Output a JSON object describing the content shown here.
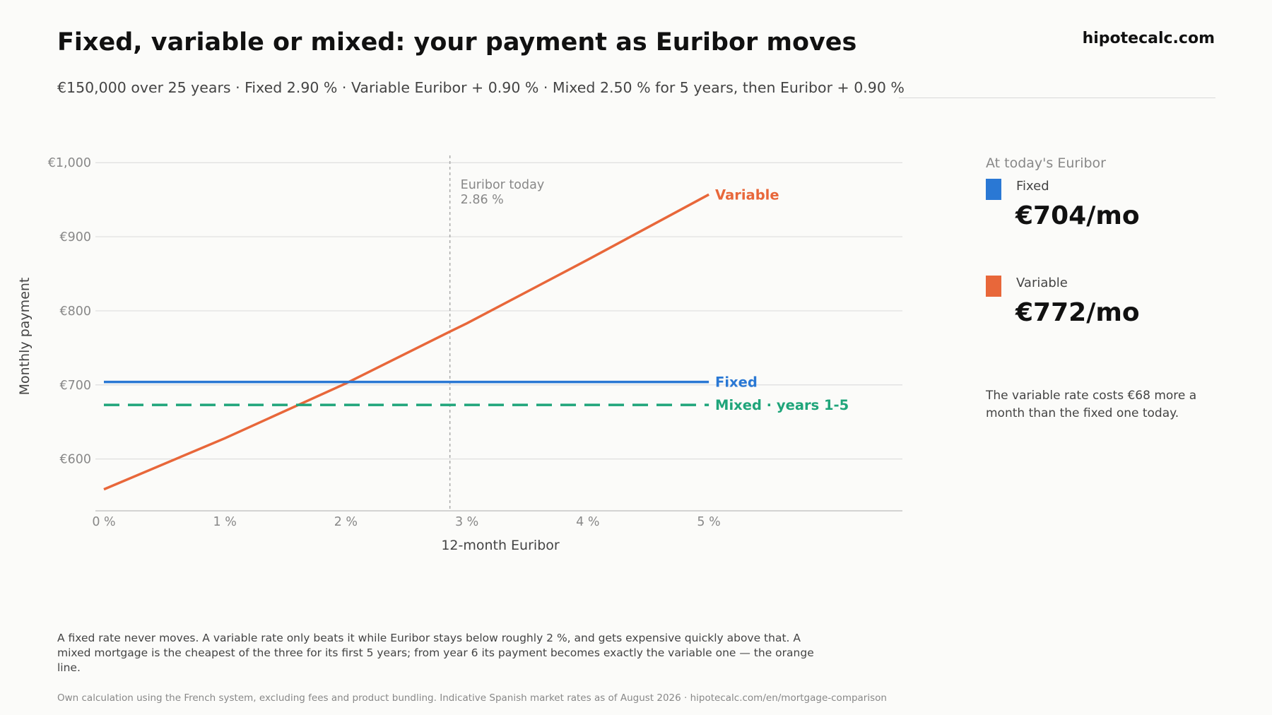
{
  "brand": "hipotecalc.com",
  "title": "Fixed, variable or mixed: your payment as Euribor moves",
  "subtitle": "€150,000 over 25 years · Fixed 2.90 % · Variable Euribor + 0.90 % · Mixed 2.50 % for 5 years, then Euribor + 0.90 %",
  "chart_data": {
    "type": "line",
    "xlabel": "12-month Euribor",
    "ylabel": "Monthly payment",
    "xlim": [
      -0.07,
      6.6
    ],
    "ylim": [
      530,
      1005
    ],
    "x_ticks": [
      0,
      1,
      2,
      3,
      4,
      5
    ],
    "x_tick_labels": [
      "0 %",
      "1 %",
      "2 %",
      "3 %",
      "4 %",
      "5 %"
    ],
    "y_ticks": [
      600,
      700,
      800,
      900,
      1000
    ],
    "y_tick_labels": [
      "€600",
      "€700",
      "€800",
      "€900",
      "€1,000"
    ],
    "grid": "horizontal",
    "series": [
      {
        "name": "Variable",
        "color": "#e8673a",
        "style": "solid",
        "x": [
          0,
          1,
          2,
          2.86,
          3,
          4,
          5
        ],
        "y": [
          559,
          628,
          702,
          772,
          783,
          869,
          957
        ]
      },
      {
        "name": "Fixed",
        "color": "#2a78d4",
        "style": "solid",
        "x": [
          0,
          5
        ],
        "y": [
          704,
          704
        ]
      },
      {
        "name": "Mixed · years 1-5",
        "color": "#1fa57a",
        "style": "dashed",
        "x": [
          0,
          5
        ],
        "y": [
          673,
          673
        ]
      }
    ],
    "annotation": {
      "x": 2.86,
      "line1": "Euribor today",
      "line2": "2.86 %"
    }
  },
  "panel": {
    "title": "At today's Euribor",
    "items": [
      {
        "label": "Fixed",
        "value": "€704/mo",
        "color": "#2a78d4"
      },
      {
        "label": "Variable",
        "value": "€772/mo",
        "color": "#e8673a"
      }
    ],
    "note": "The variable rate costs €68 more a month than the fixed one today."
  },
  "explanation": "A fixed rate never moves. A variable rate only beats it while Euribor stays below roughly 2 %, and gets expensive quickly above that. A mixed mortgage is the cheapest of the three for its first 5 years; from year 6 its payment becomes exactly the variable one — the orange line.",
  "source": "Own calculation using the French system, excluding fees and product bundling. Indicative Spanish market rates as of August 2026 · hipotecalc.com/en/mortgage-comparison"
}
